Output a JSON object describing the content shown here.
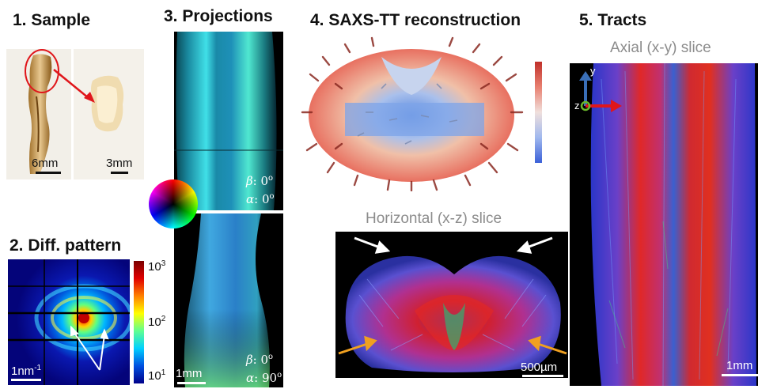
{
  "panels": {
    "sample": {
      "title": "1. Sample",
      "scale_left": "6mm",
      "scale_right": "3mm"
    },
    "diffraction": {
      "title": "2. Diff. pattern",
      "scale": "1nm",
      "scale_exp": "-1",
      "colorbar": {
        "top": {
          "base": "10",
          "exp": "3"
        },
        "mid": {
          "base": "10",
          "exp": "2"
        },
        "bottom": {
          "base": "10",
          "exp": "1"
        }
      }
    },
    "projections": {
      "title": "3. Projections",
      "top_beta": ": 0",
      "top_alpha": ": 0",
      "bottom_beta": ": 0",
      "bottom_alpha": ": 90",
      "beta_symbol": "β",
      "alpha_symbol": "α",
      "degree": "o",
      "scale": "1mm"
    },
    "saxs": {
      "title": "4. SAXS-TT reconstruction",
      "subtitle": "Horizontal (x-z) slice",
      "scale": "500µm"
    },
    "tracts": {
      "title": "5. Tracts",
      "subtitle": "Axial (x-y) slice",
      "axis_y": "y",
      "axis_z": "z",
      "scale": "1mm"
    }
  },
  "colors": {
    "arrow_red": "#e0161b",
    "arrow_white": "#ffffff",
    "arrow_orange": "#f0a020",
    "axis_blue": "#3a6fb8",
    "axis_green": "#6ab82a"
  }
}
